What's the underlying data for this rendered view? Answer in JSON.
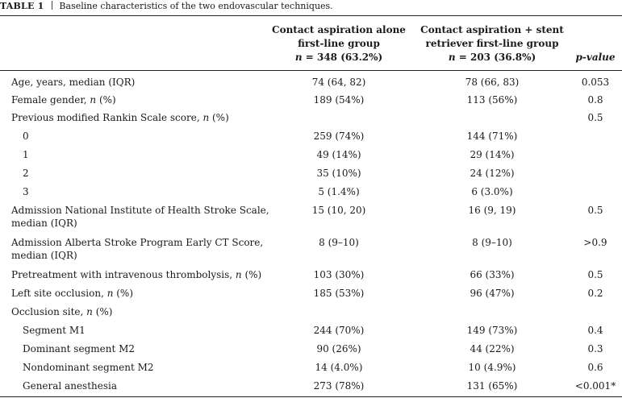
{
  "caption": {
    "label": "TABLE 1",
    "text": "Baseline characteristics of the two endovascular techniques."
  },
  "headers": {
    "col1_line1": "Contact aspiration alone",
    "col1_line2": "first-line group",
    "col1_n": "= 348 (63.2%)",
    "col2_line1": "Contact aspiration + stent",
    "col2_line2": "retriever first-line group",
    "col2_n": "= 203 (36.8%)",
    "n_symbol": "n",
    "p": "p-value"
  },
  "rows": [
    {
      "label": "Age, years, median (IQR)",
      "v1": "74 (64, 82)",
      "v2": "78 (66, 83)",
      "p": "0.053"
    },
    {
      "label": "Female gender, ",
      "n": "n",
      "suffix": " (%)",
      "v1": "189 (54%)",
      "v2": "113 (56%)",
      "p": "0.8"
    },
    {
      "label": "Previous modified Rankin Scale score, ",
      "n": "n",
      "suffix": " (%)",
      "v1": "",
      "v2": "",
      "p": "0.5"
    },
    {
      "label": "0",
      "v1": "259 (74%)",
      "v2": "144 (71%)",
      "p": ""
    },
    {
      "label": "1",
      "v1": "49 (14%)",
      "v2": "29 (14%)",
      "p": ""
    },
    {
      "label": "2",
      "v1": "35 (10%)",
      "v2": "24 (12%)",
      "p": ""
    },
    {
      "label": "3",
      "v1": "5 (1.4%)",
      "v2": "6 (3.0%)",
      "p": ""
    },
    {
      "label": "Admission National Institute of Health Stroke Scale,",
      "label2": "median (IQR)",
      "v1": "15 (10, 20)",
      "v2": "16 (9, 19)",
      "p": "0.5"
    },
    {
      "label": "Admission Alberta Stroke Program Early CT Score,",
      "label2": "median (IQR)",
      "v1": "8 (9–10)",
      "v2": "8 (9–10)",
      "p": ">0.9"
    },
    {
      "label": "Pretreatment with intravenous thrombolysis, ",
      "n": "n",
      "suffix": " (%)",
      "v1": "103 (30%)",
      "v2": "66 (33%)",
      "p": "0.5"
    },
    {
      "label": "Left site occlusion, ",
      "n": "n",
      "suffix": " (%)",
      "v1": "185 (53%)",
      "v2": "96 (47%)",
      "p": "0.2"
    },
    {
      "label": "Occlusion site, ",
      "n": "n",
      "suffix": " (%)",
      "v1": "",
      "v2": "",
      "p": ""
    },
    {
      "label": "Segment M1",
      "v1": "244 (70%)",
      "v2": "149 (73%)",
      "p": "0.4"
    },
    {
      "label": "Dominant segment M2",
      "v1": "90 (26%)",
      "v2": "44 (22%)",
      "p": "0.3"
    },
    {
      "label": "Nondominant segment M2",
      "v1": "14 (4.0%)",
      "v2": "10 (4.9%)",
      "p": "0.6"
    },
    {
      "label": "General anesthesia",
      "v1": "273 (78%)",
      "v2": "131 (65%)",
      "p": "<0.001*"
    }
  ]
}
